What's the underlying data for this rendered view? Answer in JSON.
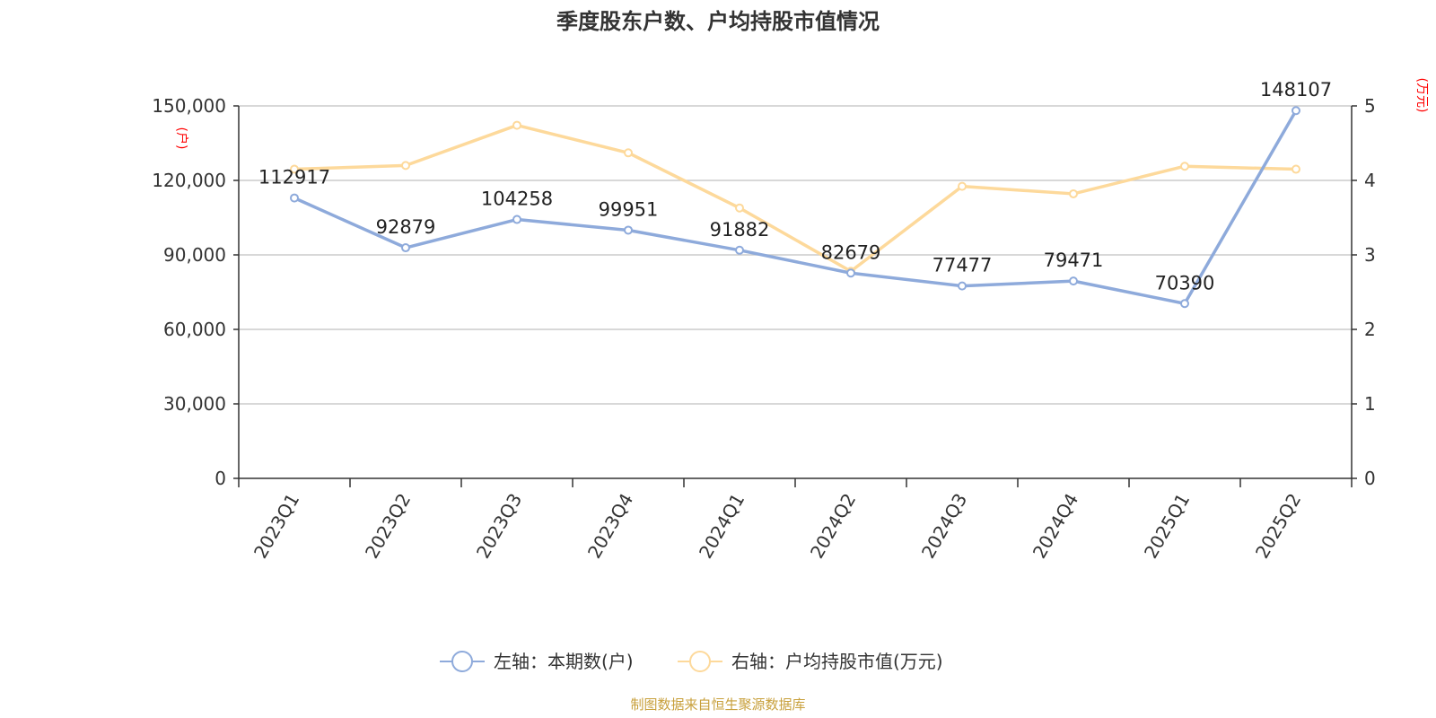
{
  "chart_data": {
    "type": "line",
    "title": "季度股东户数、户均持股市值情况",
    "categories": [
      "2023Q1",
      "2023Q2",
      "2023Q3",
      "2023Q4",
      "2024Q1",
      "2024Q2",
      "2024Q3",
      "2024Q4",
      "2025Q1",
      "2025Q2"
    ],
    "series": [
      {
        "name": "左轴：本期数(户)",
        "axis": "left",
        "color": "#8eaadb",
        "values": [
          112917,
          92879,
          104258,
          99951,
          91882,
          82679,
          77477,
          79471,
          70390,
          148107
        ],
        "labels": [
          "112917",
          "92879",
          "104258",
          "99951",
          "91882",
          "82679",
          "77477",
          "79471",
          "70390",
          "148107"
        ]
      },
      {
        "name": "右轴：户均持股市值(万元)",
        "axis": "right",
        "color": "#fdd99b",
        "values": [
          4.15,
          4.2,
          4.74,
          4.37,
          3.63,
          2.78,
          3.92,
          3.82,
          4.19,
          4.15
        ]
      }
    ],
    "y_left": {
      "unit": "(户)",
      "ylim": [
        0,
        150000
      ],
      "ticks": [
        "0",
        "30,000",
        "60,000",
        "90,000",
        "120,000",
        "150,000"
      ],
      "tick_values": [
        0,
        30000,
        60000,
        90000,
        120000,
        150000
      ]
    },
    "y_right": {
      "unit": "(万元)",
      "ylim": [
        0,
        5
      ],
      "ticks": [
        "0",
        "1",
        "2",
        "3",
        "4",
        "5"
      ],
      "tick_values": [
        0,
        1,
        2,
        3,
        4,
        5
      ]
    },
    "grid": true,
    "legend_position": "bottom"
  },
  "source": {
    "text": "制图数据来自恒生聚源数据库",
    "color": "#c8a03c"
  },
  "colors": {
    "grid": "#cccccc",
    "axis": "#333333",
    "unit": "#ff0000"
  }
}
